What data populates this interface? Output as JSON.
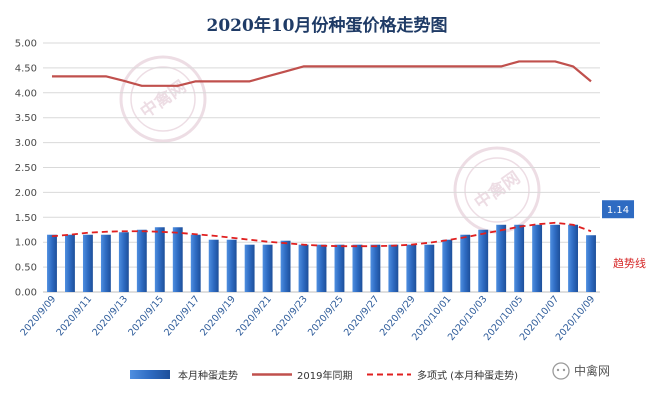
{
  "chart_data": {
    "type": "bar",
    "title": "2020年10月份种蛋价格走势图",
    "ylim": [
      0,
      5
    ],
    "y_ticks": [
      "0.00",
      "0.50",
      "1.00",
      "1.50",
      "2.00",
      "2.50",
      "3.00",
      "3.50",
      "4.00",
      "4.50",
      "5.00"
    ],
    "x_tick_labels": [
      "2020/9/09",
      "2020/9/11",
      "2020/9/13",
      "2020/9/15",
      "2020/9/17",
      "2020/9/19",
      "2020/9/21",
      "2020/9/23",
      "2020/9/25",
      "2020/9/27",
      "2020/9/29",
      "2020/10/01",
      "2020/10/03",
      "2020/10/05",
      "2020/10/07",
      "2020/10/09"
    ],
    "categories": [
      "2020/9/09",
      "2020/9/10",
      "2020/9/11",
      "2020/9/12",
      "2020/9/13",
      "2020/9/14",
      "2020/9/15",
      "2020/9/16",
      "2020/9/17",
      "2020/9/18",
      "2020/9/19",
      "2020/9/20",
      "2020/9/21",
      "2020/9/22",
      "2020/9/23",
      "2020/9/24",
      "2020/9/25",
      "2020/9/26",
      "2020/9/27",
      "2020/9/28",
      "2020/9/29",
      "2020/9/30",
      "2020/10/01",
      "2020/10/02",
      "2020/10/03",
      "2020/10/04",
      "2020/10/05",
      "2020/10/06",
      "2020/10/07",
      "2020/10/08",
      "2020/10/09"
    ],
    "series": [
      {
        "name": "本月种蛋走势",
        "type": "bar",
        "color": "#2e6bc2",
        "values": [
          1.15,
          1.15,
          1.15,
          1.15,
          1.2,
          1.25,
          1.3,
          1.3,
          1.15,
          1.05,
          1.05,
          0.95,
          0.95,
          1.03,
          0.95,
          0.95,
          0.95,
          0.95,
          0.95,
          0.95,
          0.95,
          0.95,
          1.05,
          1.15,
          1.25,
          1.35,
          1.35,
          1.35,
          1.35,
          1.35,
          1.14
        ]
      },
      {
        "name": "2019年同期",
        "type": "line",
        "color": "#c0504d",
        "values": [
          4.33,
          4.33,
          4.33,
          4.33,
          4.24,
          4.14,
          4.14,
          4.14,
          4.23,
          4.23,
          4.23,
          4.23,
          4.33,
          4.43,
          4.53,
          4.53,
          4.53,
          4.53,
          4.53,
          4.53,
          4.53,
          4.53,
          4.53,
          4.53,
          4.53,
          4.53,
          4.63,
          4.63,
          4.63,
          4.53,
          4.23
        ]
      },
      {
        "name": "多项式 (本月种蛋走势)",
        "type": "line-dashed",
        "color": "#e02020",
        "values": [
          1.12,
          1.15,
          1.19,
          1.21,
          1.22,
          1.22,
          1.21,
          1.19,
          1.16,
          1.13,
          1.09,
          1.05,
          1.01,
          0.98,
          0.95,
          0.93,
          0.92,
          0.92,
          0.92,
          0.93,
          0.95,
          0.99,
          1.04,
          1.1,
          1.17,
          1.24,
          1.31,
          1.36,
          1.39,
          1.35,
          1.22
        ]
      }
    ],
    "data_label": "1.14",
    "trend_label": "趋势线",
    "legend_position": "bottom",
    "grid": true
  },
  "brand": {
    "watermark": "中禽网",
    "name": "中禽网"
  },
  "colors": {
    "bar": "#2e6bc2",
    "line_2019": "#c0504d",
    "trend": "#e02020",
    "callout_bg": "#2e6bc2",
    "title": "#1f3b66"
  }
}
